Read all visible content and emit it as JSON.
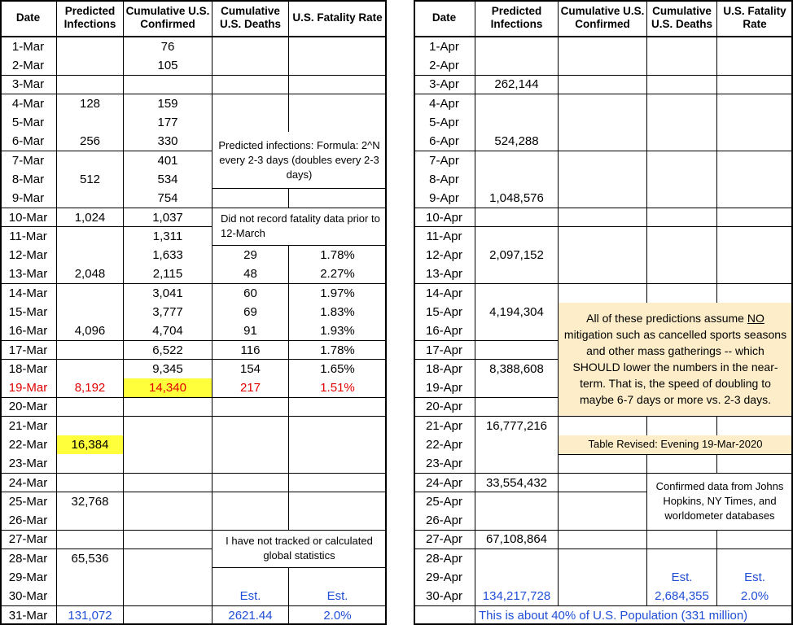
{
  "left": {
    "header": [
      "Date",
      "Predicted Infections",
      "Cumulative U.S. Confirmed",
      "Cumulative U.S. Deaths",
      "U.S. Fatality Rate"
    ],
    "rows": [
      {
        "date": "1-Mar",
        "confirmed": "76"
      },
      {
        "date": "2-Mar",
        "confirmed": "105"
      },
      {
        "date": "3-Mar"
      },
      {
        "date": "4-Mar",
        "predicted": "128",
        "confirmed": "159"
      },
      {
        "date": "5-Mar",
        "confirmed": "177"
      },
      {
        "date": "6-Mar",
        "predicted": "256",
        "confirmed": "330"
      },
      {
        "date": "7-Mar",
        "confirmed": "401"
      },
      {
        "date": "8-Mar",
        "predicted": "512",
        "confirmed": "534"
      },
      {
        "date": "9-Mar",
        "confirmed": "754"
      },
      {
        "date": "10-Mar",
        "predicted": "1,024",
        "confirmed": "1,037"
      },
      {
        "date": "11-Mar",
        "confirmed": "1,311"
      },
      {
        "date": "12-Mar",
        "confirmed": "1,633",
        "deaths": "29",
        "rate": "1.78%"
      },
      {
        "date": "13-Mar",
        "predicted": "2,048",
        "confirmed": "2,115",
        "deaths": "48",
        "rate": "2.27%"
      },
      {
        "date": "14-Mar",
        "confirmed": "3,041",
        "deaths": "60",
        "rate": "1.97%"
      },
      {
        "date": "15-Mar",
        "confirmed": "3,777",
        "deaths": "69",
        "rate": "1.83%"
      },
      {
        "date": "16-Mar",
        "predicted": "4,096",
        "confirmed": "4,704",
        "deaths": "91",
        "rate": "1.93%"
      },
      {
        "date": "17-Mar",
        "confirmed": "6,522",
        "deaths": "116",
        "rate": "1.78%"
      },
      {
        "date": "18-Mar",
        "confirmed": "9,345",
        "deaths": "154",
        "rate": "1.65%"
      },
      {
        "date": "19-Mar",
        "predicted": "8,192",
        "confirmed": "14,340",
        "deaths": "217",
        "rate": "1.51%"
      },
      {
        "date": "20-Mar"
      },
      {
        "date": "21-Mar"
      },
      {
        "date": "22-Mar",
        "predicted": "16,384"
      },
      {
        "date": "23-Mar"
      },
      {
        "date": "24-Mar"
      },
      {
        "date": "25-Mar",
        "predicted": "32,768"
      },
      {
        "date": "26-Mar"
      },
      {
        "date": "27-Mar"
      },
      {
        "date": "28-Mar",
        "predicted": "65,536"
      },
      {
        "date": "29-Mar"
      },
      {
        "date": "30-Mar",
        "deaths": "Est.",
        "rate": "Est."
      },
      {
        "date": "31-Mar",
        "predicted": "131,072",
        "deaths": "2621.44",
        "rate": "2.0%"
      }
    ],
    "notes": {
      "formula": "Predicted infections: Formula: 2^N every 2-3 days (doubles every 2-3 days)",
      "fatality": "Did not record fatality data prior to 12-March",
      "global": "I have not tracked or calculated global statistics"
    }
  },
  "right": {
    "header": [
      "Date",
      "Predicted Infections",
      "Cumulative U.S. Confirmed",
      "Cumulative U.S. Deaths",
      "U.S. Fatality Rate"
    ],
    "rows": [
      {
        "date": "1-Apr"
      },
      {
        "date": "2-Apr"
      },
      {
        "date": "3-Apr",
        "predicted": "262,144"
      },
      {
        "date": "4-Apr"
      },
      {
        "date": "5-Apr"
      },
      {
        "date": "6-Apr",
        "predicted": "524,288"
      },
      {
        "date": "7-Apr"
      },
      {
        "date": "8-Apr"
      },
      {
        "date": "9-Apr",
        "predicted": "1,048,576"
      },
      {
        "date": "10-Apr"
      },
      {
        "date": "11-Apr"
      },
      {
        "date": "12-Apr",
        "predicted": "2,097,152"
      },
      {
        "date": "13-Apr"
      },
      {
        "date": "14-Apr"
      },
      {
        "date": "15-Apr",
        "predicted": "4,194,304"
      },
      {
        "date": "16-Apr"
      },
      {
        "date": "17-Apr"
      },
      {
        "date": "18-Apr",
        "predicted": "8,388,608"
      },
      {
        "date": "19-Apr"
      },
      {
        "date": "20-Apr"
      },
      {
        "date": "21-Apr",
        "predicted": "16,777,216"
      },
      {
        "date": "22-Apr"
      },
      {
        "date": "23-Apr"
      },
      {
        "date": "24-Apr",
        "predicted": "33,554,432"
      },
      {
        "date": "25-Apr"
      },
      {
        "date": "26-Apr"
      },
      {
        "date": "27-Apr",
        "predicted": "67,108,864"
      },
      {
        "date": "28-Apr"
      },
      {
        "date": "29-Apr",
        "deaths": "Est.",
        "rate": "Est."
      },
      {
        "date": "30-Apr",
        "predicted": "134,217,728",
        "deaths": "2,684,355",
        "rate": "2.0%"
      }
    ],
    "notes": {
      "assumption_before": "All of these predictions assume",
      "assumption_emphasis": "NO",
      "assumption_after": "mitigation such as cancelled sports seasons and other mass gatherings -- which SHOULD lower the numbers in the near-term. That is, the speed of doubling to maybe 6-7 days or more vs. 2-3 days.",
      "revised": "Table Revised: Evening  19-Mar-2020",
      "sources": "Confirmed data from Johns Hopkins, NY Times, and worldometer databases"
    },
    "footer": "This is about 40% of U.S. Population (331 million)"
  }
}
